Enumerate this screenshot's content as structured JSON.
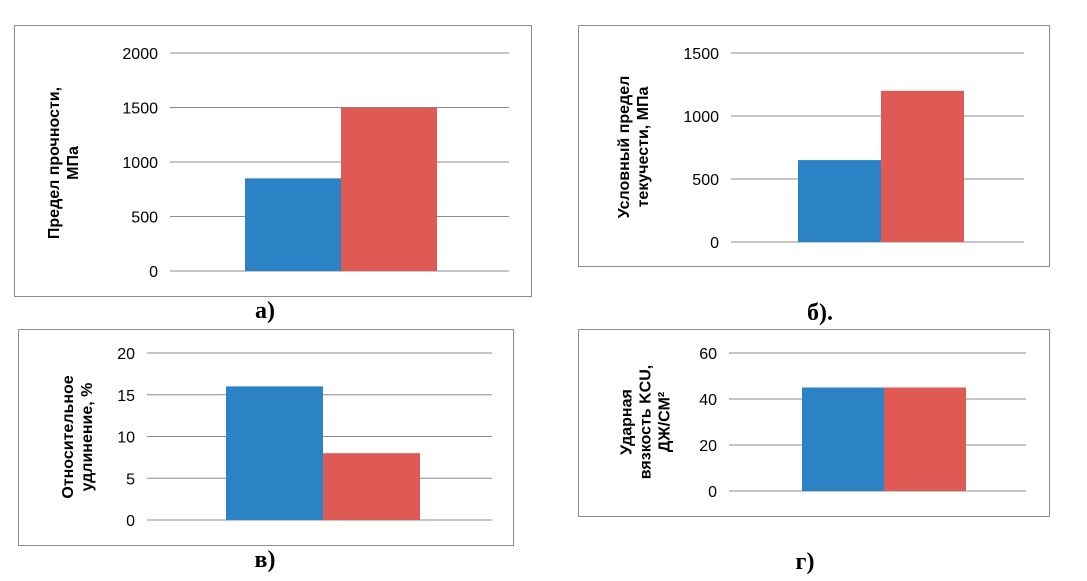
{
  "colors": {
    "series_a": "#2b82c4",
    "series_b": "#e05a55",
    "grid": "#8c8c8c"
  },
  "chart_data": [
    {
      "type": "bar",
      "caption": "а)",
      "ylabel": "Предел прочности,\nМПа",
      "ylim": [
        0,
        2000
      ],
      "yticks": [
        "0",
        "500",
        "1000",
        "1500",
        "2000"
      ],
      "categories": [
        ""
      ],
      "series": [
        {
          "values": [
            850
          ]
        },
        {
          "values": [
            1500
          ]
        }
      ],
      "grid": true
    },
    {
      "type": "bar",
      "caption": "б).",
      "ylabel": "Условный предел\nтекучести, МПа",
      "ylim": [
        0,
        1500
      ],
      "yticks": [
        "0",
        "500",
        "1000",
        "1500"
      ],
      "categories": [
        ""
      ],
      "series": [
        {
          "values": [
            650
          ]
        },
        {
          "values": [
            1200
          ]
        }
      ],
      "grid": true
    },
    {
      "type": "bar",
      "caption": "в)",
      "ylabel": "Относительное\nудлинение, %",
      "ylim": [
        0,
        20
      ],
      "yticks": [
        "0",
        "5",
        "10",
        "15",
        "20"
      ],
      "categories": [
        ""
      ],
      "series": [
        {
          "values": [
            16
          ]
        },
        {
          "values": [
            8
          ]
        }
      ],
      "grid": true
    },
    {
      "type": "bar",
      "caption": "г)",
      "ylabel": "Ударная\nвязкость KCU,\nДЖ/СМ²",
      "ylim": [
        0,
        60
      ],
      "yticks": [
        "0",
        "20",
        "40",
        "60"
      ],
      "categories": [
        ""
      ],
      "series": [
        {
          "values": [
            45
          ]
        },
        {
          "values": [
            45
          ]
        }
      ],
      "grid": true
    }
  ]
}
